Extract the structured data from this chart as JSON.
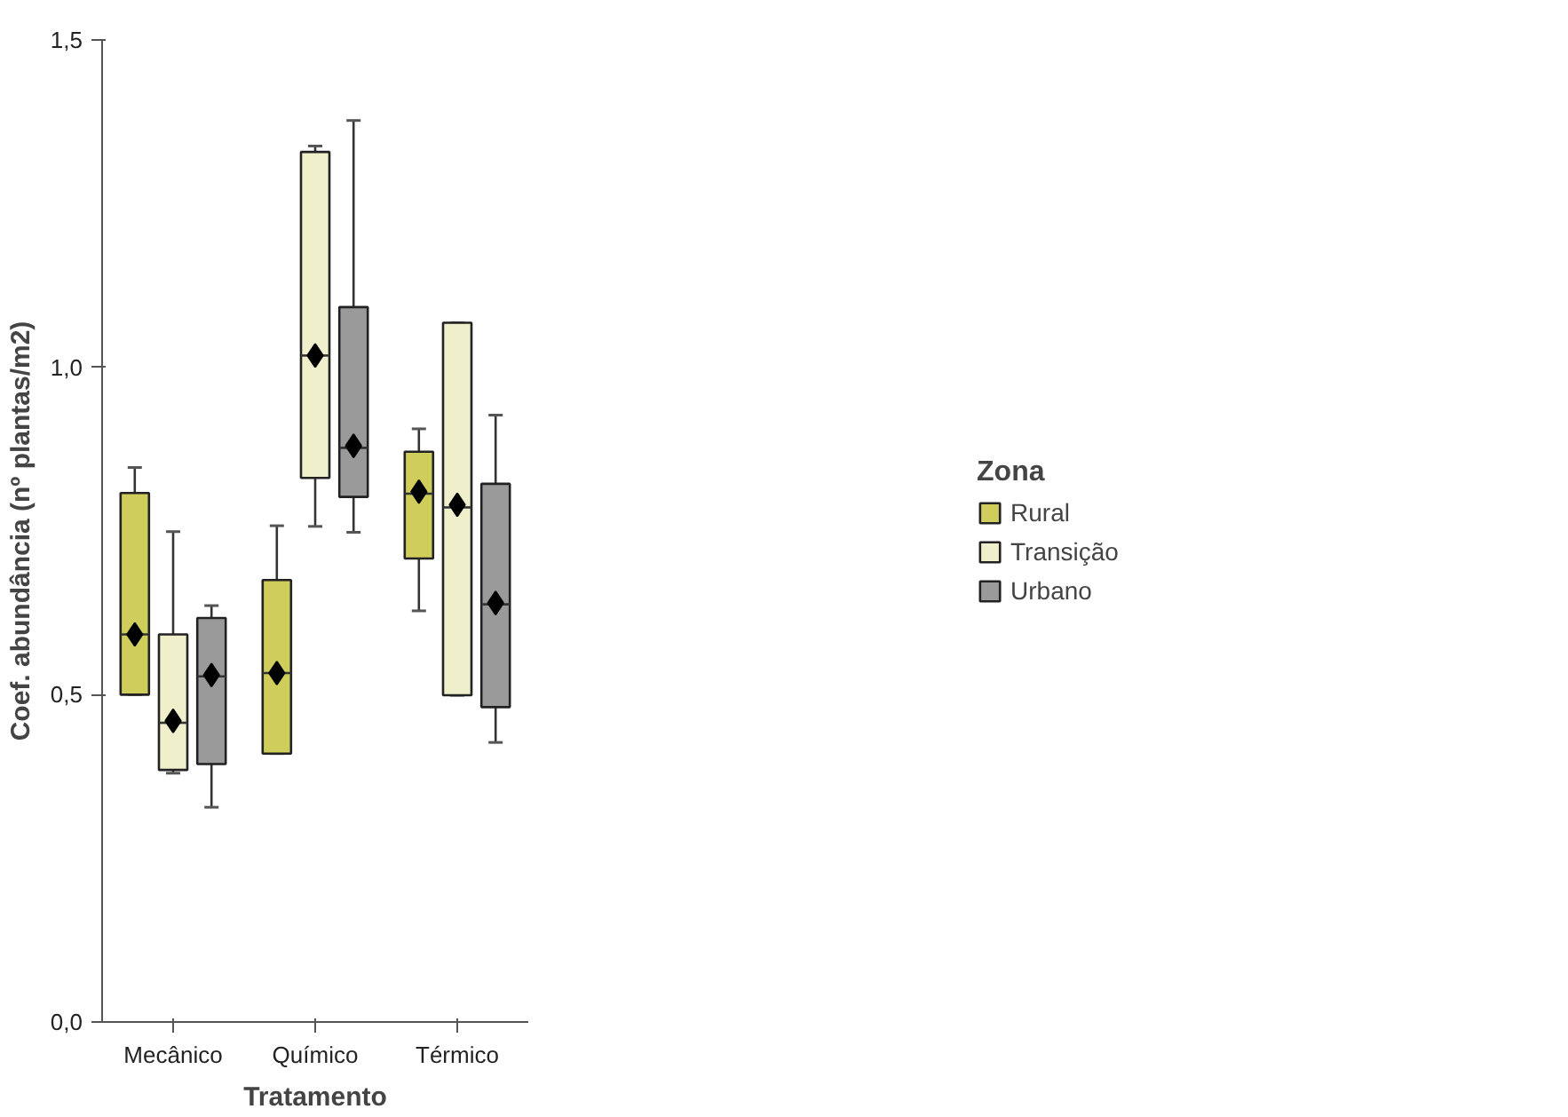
{
  "chart_data": {
    "type": "box",
    "xlabel": "Tratamento",
    "ylabel": "Coef. abundância (nº plantas/m2)",
    "legend_title": "Zona",
    "categories": [
      "Mecânico",
      "Químico",
      "Térmico"
    ],
    "series": [
      {
        "name": "Rural",
        "color": "#cfcd5c",
        "boxes": [
          {
            "low": 0.5,
            "q1": 0.5,
            "median": 0.592,
            "q3": 0.808,
            "high": 0.847,
            "mean": 0.592
          },
          {
            "low": 0.41,
            "q1": 0.41,
            "median": 0.533,
            "q3": 0.675,
            "high": 0.758,
            "mean": 0.533
          },
          {
            "low": 0.628,
            "q1": 0.708,
            "median": 0.807,
            "q3": 0.871,
            "high": 0.906,
            "mean": 0.81
          }
        ]
      },
      {
        "name": "Transição",
        "color": "#efefcc",
        "boxes": [
          {
            "low": 0.38,
            "q1": 0.385,
            "median": 0.457,
            "q3": 0.592,
            "high": 0.749,
            "mean": 0.46
          },
          {
            "low": 0.757,
            "q1": 0.831,
            "median": 1.018,
            "q3": 1.329,
            "high": 1.338,
            "mean": 1.018
          },
          {
            "low": 0.499,
            "q1": 0.499,
            "median": 0.786,
            "q3": 1.068,
            "high": 1.068,
            "mean": 0.79
          }
        ]
      },
      {
        "name": "Urbano",
        "color": "#9a9a9a",
        "boxes": [
          {
            "low": 0.328,
            "q1": 0.394,
            "median": 0.528,
            "q3": 0.617,
            "high": 0.636,
            "mean": 0.53
          },
          {
            "low": 0.748,
            "q1": 0.802,
            "median": 0.877,
            "q3": 1.092,
            "high": 1.377,
            "mean": 0.88
          },
          {
            "low": 0.427,
            "q1": 0.481,
            "median": 0.638,
            "q3": 0.822,
            "high": 0.927,
            "mean": 0.64
          }
        ]
      }
    ],
    "ylim": [
      0,
      1.5
    ],
    "yticks": [
      {
        "value": 0,
        "label": "0,0"
      },
      {
        "value": 0.5,
        "label": "0,5"
      },
      {
        "value": 1.0,
        "label": "1,0"
      },
      {
        "value": 1.5,
        "label": "1,5"
      }
    ],
    "grid": false,
    "legend": "right",
    "marker": "diamond"
  }
}
